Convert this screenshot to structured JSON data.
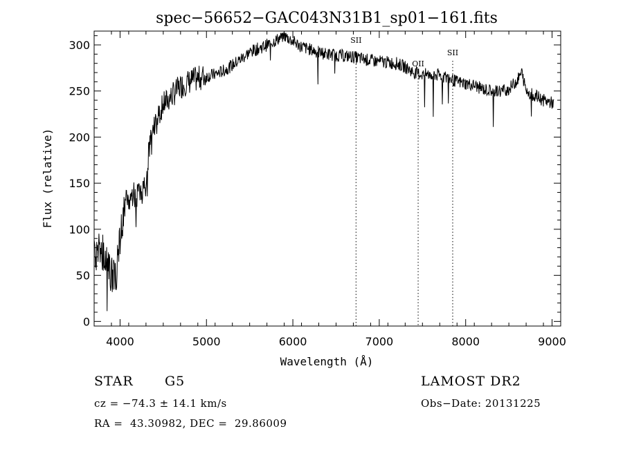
{
  "chart_data": {
    "type": "line",
    "title": "spec−56652−GAC043N31B1_sp01−161.fits",
    "xlabel": "Wavelength (Å)",
    "ylabel": "Flux (relative)",
    "xlim": [
      3700,
      9100
    ],
    "ylim": [
      -5,
      315
    ],
    "xticks": [
      4000,
      5000,
      6000,
      7000,
      8000,
      9000
    ],
    "yticks": [
      0,
      50,
      100,
      150,
      200,
      250,
      300
    ],
    "grid": false,
    "line_color": "#000000",
    "spectrum": {
      "x": [
        3700,
        3750,
        3800,
        3850,
        3900,
        3950,
        4000,
        4050,
        4100,
        4150,
        4200,
        4250,
        4300,
        4350,
        4400,
        4450,
        4500,
        4550,
        4600,
        4650,
        4700,
        4750,
        4800,
        4850,
        4900,
        4950,
        5000,
        5100,
        5200,
        5300,
        5400,
        5500,
        5600,
        5700,
        5800,
        5900,
        6000,
        6100,
        6200,
        6300,
        6400,
        6500,
        6600,
        6700,
        6800,
        6900,
        7000,
        7100,
        7200,
        7300,
        7400,
        7500,
        7600,
        7700,
        7800,
        7900,
        8000,
        8100,
        8200,
        8300,
        8400,
        8500,
        8600,
        8650,
        8700,
        8800,
        8900,
        9000
      ],
      "y": [
        70,
        80,
        75,
        60,
        50,
        45,
        90,
        120,
        130,
        140,
        135,
        140,
        150,
        200,
        210,
        225,
        235,
        240,
        245,
        250,
        255,
        258,
        260,
        262,
        263,
        265,
        266,
        268,
        272,
        278,
        285,
        292,
        296,
        300,
        305,
        310,
        304,
        298,
        295,
        292,
        290,
        289,
        288,
        287,
        285,
        283,
        282,
        281,
        280,
        276,
        270,
        268,
        268,
        267,
        264,
        260,
        258,
        256,
        252,
        250,
        250,
        252,
        262,
        270,
        250,
        245,
        240,
        237
      ]
    },
    "lines": [
      {
        "label": "SII",
        "x": 6731
      },
      {
        "label": "OII",
        "x": 7450
      },
      {
        "label": "SII",
        "x": 7850
      }
    ]
  },
  "info": {
    "class_label": "STAR",
    "subclass": "G5",
    "survey": "LAMOST DR2",
    "cz": "cz = −74.3 ± 14.1 km/s",
    "obs_date": "Obs−Date: 20131225",
    "coords": "RA =  43.30982, DEC =  29.86009"
  }
}
